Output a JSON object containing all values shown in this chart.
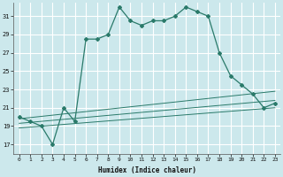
{
  "xlabel": "Humidex (Indice chaleur)",
  "x_ticks": [
    0,
    1,
    2,
    3,
    4,
    5,
    6,
    7,
    8,
    9,
    10,
    11,
    12,
    13,
    14,
    15,
    16,
    17,
    18,
    19,
    20,
    21,
    22,
    23
  ],
  "y_ticks": [
    17,
    19,
    21,
    23,
    25,
    27,
    29,
    31
  ],
  "ylim": [
    16.0,
    32.5
  ],
  "xlim": [
    -0.5,
    23.5
  ],
  "bg_color": "#cce8ec",
  "grid_color": "#ffffff",
  "line_color": "#2a7a6a",
  "main_line_x": [
    0,
    1,
    2,
    3,
    4,
    5,
    6,
    7,
    8,
    9,
    10,
    11,
    12,
    13,
    14,
    15,
    16,
    17,
    18,
    19,
    20,
    21,
    22,
    23
  ],
  "main_line_y": [
    20.0,
    19.5,
    19.0,
    17.0,
    21.0,
    19.5,
    28.5,
    28.5,
    29.0,
    32.0,
    30.5,
    30.0,
    30.5,
    30.5,
    31.0,
    32.0,
    31.5,
    31.0,
    27.0,
    24.5,
    23.5,
    22.5,
    21.0,
    21.5
  ],
  "line2_x": [
    0,
    23
  ],
  "line2_y": [
    19.8,
    22.8
  ],
  "line3_x": [
    0,
    23
  ],
  "line3_y": [
    19.3,
    21.8
  ],
  "line4_x": [
    0,
    23
  ],
  "line4_y": [
    18.8,
    21.0
  ]
}
